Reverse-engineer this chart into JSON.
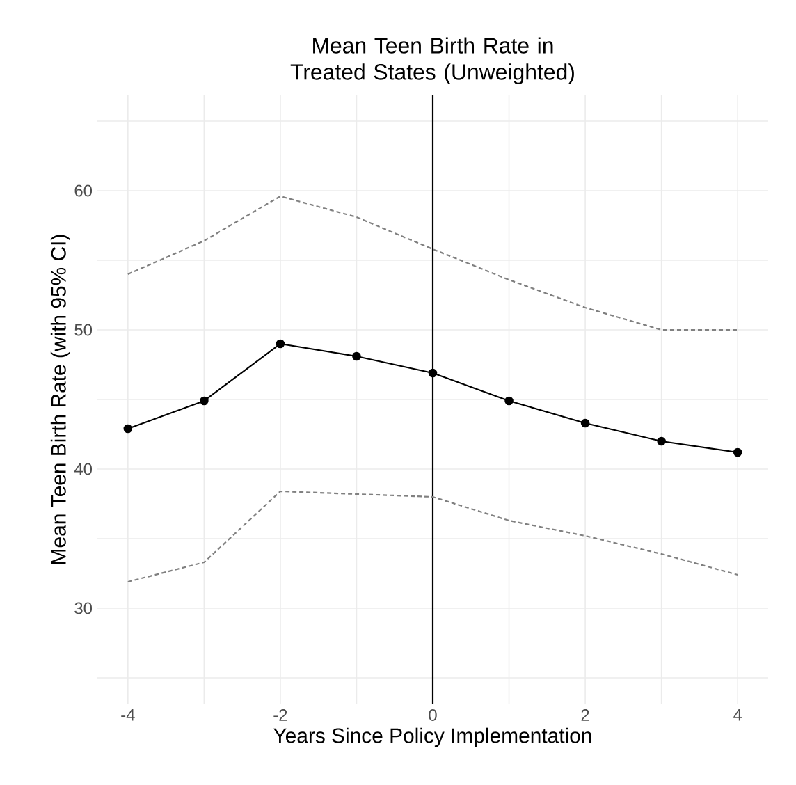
{
  "chart_data": {
    "type": "line",
    "title": "Mean Teen Birth Rate in Treated States (Unweighted)",
    "xlabel": "Years Since Policy Implementation",
    "ylabel": "Mean Teen Birth Rate (with 95% CI)",
    "x": [
      -4,
      -3,
      -2,
      -1,
      0,
      1,
      2,
      3,
      4
    ],
    "series": [
      {
        "color": "#808080",
        "line_style": "dashed",
        "marker": "none",
        "values": [
          54.0,
          56.4,
          59.6,
          58.1,
          55.8,
          53.6,
          51.6,
          50.0,
          50.0
        ]
      },
      {
        "color": "#808080",
        "line_style": "dashed",
        "marker": "none",
        "values": [
          31.9,
          33.3,
          38.4,
          38.2,
          38.0,
          36.3,
          35.2,
          33.9,
          32.4
        ]
      },
      {
        "color": "#000000",
        "line_style": "solid",
        "marker": "circle",
        "values": [
          42.9,
          44.9,
          49.0,
          48.1,
          46.9,
          44.9,
          43.3,
          42.0,
          41.2
        ]
      }
    ],
    "xlim": [
      -4.4,
      4.4
    ],
    "ylim": [
      23.1,
      66.9
    ],
    "xticks": [
      -4,
      {
        "value": -3,
        "label": null
      },
      -2,
      {
        "value": -1,
        "label": null
      },
      0,
      {
        "value": 1,
        "label": null
      },
      2,
      {
        "value": 3,
        "label": null
      },
      4
    ],
    "yticks": [
      {
        "value": 25,
        "label": null
      },
      30,
      {
        "value": 35,
        "label": null
      },
      40,
      {
        "value": 45,
        "label": null
      },
      50,
      {
        "value": 55,
        "label": null
      },
      60,
      {
        "value": 65,
        "label": null
      }
    ],
    "grid": true,
    "ref_lines": [
      {
        "axis": "x",
        "value": 0,
        "color": "#000000"
      }
    ]
  }
}
